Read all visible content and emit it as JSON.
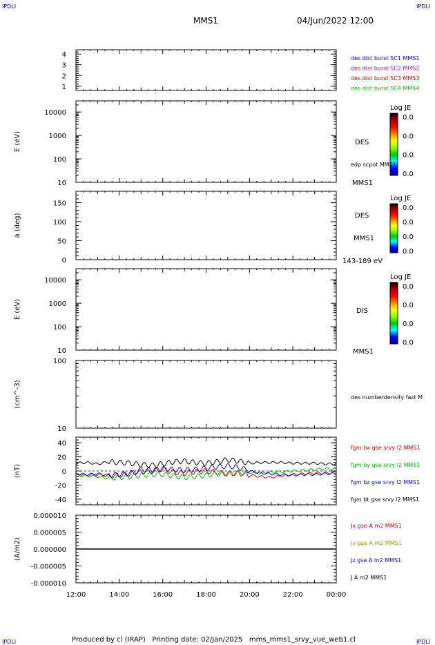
{
  "header": {
    "corner_tl": "IPDLI",
    "corner_tr": "IPDLI",
    "corner_bl": "IPDLI",
    "corner_br": "IPDLI",
    "spacecraft": "MMS1",
    "datetime": "04/Jun/2022 12:00"
  },
  "footer": {
    "text": "Produced by cl (IRAP)   Printing date: 02/Jan/2025   mms_mms1_srvy_vue_web1.cl"
  },
  "chart_data": [
    {
      "type": "line",
      "id": "panel1",
      "ylim": [
        0.6,
        4.4
      ],
      "yticks": [
        "4",
        "3",
        "2",
        "1"
      ],
      "ytick_values": [
        4,
        3,
        2,
        1
      ],
      "legend": [
        {
          "text": "des dist burst SC1 MMS1",
          "color": "#0000cc"
        },
        {
          "text": "des dist burst SC2 MMS2",
          "color": "#cc00cc"
        },
        {
          "text": "des dist burst SC3 MMS3",
          "color": "#cc0000"
        },
        {
          "text": "des dist burst SC4 MMS4",
          "color": "#00bb00"
        }
      ]
    },
    {
      "type": "heatmap",
      "id": "panel2",
      "ylabel": "E (eV)",
      "log": true,
      "ylim": [
        10,
        30000
      ],
      "yticks": [
        "10000",
        "1000",
        "100",
        "10"
      ],
      "ytick_values": [
        10000,
        1000,
        100,
        10
      ],
      "right_labels": [
        {
          "text": "DES",
          "color": "#000000"
        },
        {
          "text": "edp scpot MMS1",
          "color": "#000000"
        }
      ],
      "colorbar": {
        "title": "Log JE",
        "ticks": [
          "0.0",
          "0.0",
          "0.0",
          "0.0"
        ]
      }
    },
    {
      "type": "heatmap",
      "id": "panel3",
      "ylabel": "a (deg)",
      "ylim": [
        0,
        180
      ],
      "yticks": [
        "150",
        "100",
        "50",
        "0"
      ],
      "ytick_values": [
        150,
        100,
        50,
        0
      ],
      "top_label": "MMS1",
      "right_labels": [
        {
          "text": "DES",
          "color": "#000000"
        },
        {
          "text": "MMS1",
          "color": "#000000"
        }
      ],
      "bottom_right_label": "143-189 eV",
      "colorbar": {
        "title": "Log JE",
        "ticks": [
          "0.0",
          "0.0",
          "0.0",
          "0.0"
        ]
      }
    },
    {
      "type": "heatmap",
      "id": "panel4",
      "ylabel": "E (eV)",
      "log": true,
      "ylim": [
        10,
        30000
      ],
      "yticks": [
        "10000",
        "1000",
        "100",
        "10"
      ],
      "ytick_values": [
        10000,
        1000,
        100,
        10
      ],
      "right_labels": [
        {
          "text": "DIS",
          "color": "#000000"
        }
      ],
      "bottom_right_label": "MMS1",
      "colorbar": {
        "title": "Log JE",
        "ticks": [
          "0.0",
          "0.0",
          "0.0",
          "0.0"
        ]
      }
    },
    {
      "type": "line",
      "id": "panel5",
      "ylabel": "(cm^-3)",
      "log": true,
      "ylim": [
        10,
        100
      ],
      "yticks": [
        "100",
        "10"
      ],
      "ytick_values": [
        100,
        10
      ],
      "legend": [
        {
          "text": "des numberdensity fast M",
          "color": "#000000"
        }
      ]
    },
    {
      "type": "line",
      "id": "panel6",
      "ylabel": "(nT)",
      "ylim": [
        -48,
        48
      ],
      "yticks": [
        "40",
        "20",
        "0",
        "-20",
        "-40"
      ],
      "ytick_values": [
        40,
        20,
        0,
        -20,
        -40
      ],
      "x_hours": [
        0,
        0.5,
        1,
        1.5,
        2,
        2.5,
        3,
        3.5,
        4,
        4.5,
        5,
        5.5,
        6,
        6.5,
        7,
        7.5,
        8,
        8.5,
        9,
        9.5,
        10,
        10.5,
        11,
        11.5,
        12
      ],
      "series": [
        {
          "name": "fgm bx gse srvy l2 MMS1",
          "color": "#cc0000",
          "values": [
            -5,
            -6,
            -5,
            -7,
            -6,
            -4,
            2,
            1,
            3,
            -2,
            -3,
            -1,
            0,
            -2,
            -4,
            -3,
            -6,
            -8,
            -9,
            -7,
            -5,
            -4,
            -3,
            -3,
            -2
          ]
        },
        {
          "name": "fgm by gse srvy l2 MMS1",
          "color": "#00bb00",
          "values": [
            -6,
            -7,
            -8,
            -10,
            -9,
            -8,
            -6,
            -5,
            -5,
            -7,
            -9,
            -8,
            -6,
            -4,
            -4,
            -3,
            -2,
            -3,
            -2,
            -1,
            0,
            1,
            2,
            3,
            3
          ]
        },
        {
          "name": "fgm bz gse srvy l2 MMS1",
          "color": "#0000cc",
          "values": [
            -4,
            -5,
            -4,
            -6,
            -5,
            -3,
            -1,
            0,
            3,
            2,
            1,
            2,
            4,
            6,
            7,
            5,
            0,
            -3,
            -4,
            -5,
            -6,
            -5,
            -5,
            -4,
            -4
          ]
        },
        {
          "name": "fgm bt gse srvy l2 MMS1",
          "color": "#000000",
          "values": [
            11,
            12,
            10,
            13,
            12,
            11,
            9,
            8,
            10,
            13,
            14,
            12,
            11,
            13,
            16,
            14,
            11,
            12,
            12,
            12,
            11,
            11,
            11,
            10,
            10
          ]
        }
      ],
      "legend": [
        {
          "text": "fgm bx gse srvy l2 MMS1",
          "color": "#cc0000"
        },
        {
          "text": "fgm by gse srvy l2 MMS1",
          "color": "#00bb00"
        },
        {
          "text": "fgm bz gse srvy l2 MMS1",
          "color": "#0000cc"
        },
        {
          "text": "fgm bt gse srvy l2 MMS1",
          "color": "#000000"
        }
      ]
    },
    {
      "type": "line",
      "id": "panel7",
      "ylabel": "(A/m2)",
      "ylim": [
        -1e-05,
        1e-05
      ],
      "yticks": [
        "0.000010",
        "0.000005",
        "0.000000",
        "-0.000005",
        "-0.000010"
      ],
      "ytick_values": [
        1e-05,
        5e-06,
        0,
        -5e-06,
        -1e-05
      ],
      "legend": [
        {
          "text": "Jx gse A m2 MMS1",
          "color": "#cc0000"
        },
        {
          "text": "Jy gse A m2 MMS1",
          "color": "#999900"
        },
        {
          "text": "Jz gse A m2 MMS1",
          "color": "#0000cc"
        },
        {
          "text": "J A m2 MMS1",
          "color": "#000000"
        }
      ]
    }
  ],
  "xaxis": {
    "ticks": [
      "12:00",
      "14:00",
      "16:00",
      "18:00",
      "20:00",
      "22:00",
      "00:00"
    ],
    "tick_hours": [
      0,
      2,
      4,
      6,
      8,
      10,
      12
    ]
  }
}
